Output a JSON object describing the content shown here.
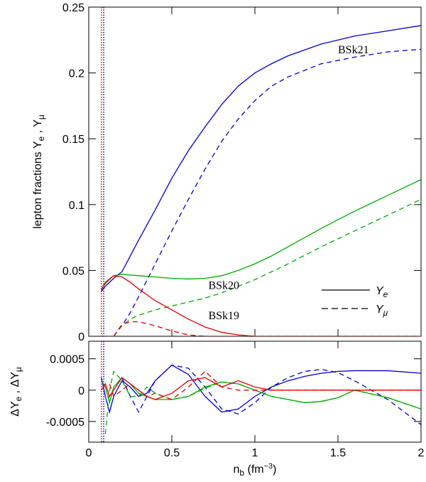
{
  "chart_data": [
    {
      "type": "line",
      "ylabel": [
        {
          "t": "lepton fractions Y"
        },
        {
          "t": "e",
          "sub": true
        },
        {
          "t": " , Y"
        },
        {
          "t": "μ",
          "sub": true
        }
      ],
      "x": [
        0.076,
        0.1,
        0.15,
        0.2,
        0.25,
        0.3,
        0.4,
        0.5,
        0.6,
        0.7,
        0.8,
        0.9,
        1.0,
        1.1,
        1.2,
        1.4,
        1.6,
        1.8,
        2.0
      ],
      "xlim": [
        0,
        2
      ],
      "xticks": [
        0,
        0.5,
        1,
        1.5,
        2
      ],
      "ylim": [
        0,
        0.25
      ],
      "yticks": [
        0,
        0.05,
        0.1,
        0.15,
        0.2,
        0.25
      ],
      "vlines": [
        {
          "x": 0.076,
          "color": "#cc0000"
        },
        {
          "x": 0.09,
          "color": "#0000cc"
        }
      ],
      "series": [
        {
          "name": "BSk21",
          "color": "#0000cc",
          "values": [
            0.034,
            0.038,
            0.044,
            0.049,
            0.061,
            0.073,
            0.096,
            0.12,
            0.141,
            0.159,
            0.176,
            0.19,
            0.2,
            0.207,
            0.213,
            0.222,
            0.228,
            0.232,
            0.236
          ],
          "values_mu": [
            null,
            null,
            0.0,
            0.008,
            0.018,
            0.03,
            0.055,
            0.08,
            0.104,
            0.127,
            0.148,
            0.165,
            0.179,
            0.19,
            0.197,
            0.207,
            0.212,
            0.216,
            0.218
          ]
        },
        {
          "name": "BSk20",
          "color": "#00aa00",
          "values": [
            0.036,
            0.04,
            0.046,
            0.047,
            0.0465,
            0.046,
            0.045,
            0.044,
            0.0435,
            0.044,
            0.046,
            0.05,
            0.055,
            0.061,
            0.068,
            0.082,
            0.095,
            0.107,
            0.119
          ],
          "values_mu": [
            null,
            null,
            0.0,
            0.008,
            0.013,
            0.016,
            0.02,
            0.023,
            0.026,
            0.029,
            0.033,
            0.038,
            0.043,
            0.049,
            0.055,
            0.068,
            0.08,
            0.092,
            0.104
          ]
        },
        {
          "name": "BSk19",
          "color": "#dd0000",
          "values": [
            0.035,
            0.041,
            0.046,
            0.045,
            0.041,
            0.036,
            0.027,
            0.02,
            0.013,
            0.007,
            0.003,
            0.001,
            0,
            0,
            0,
            0,
            0,
            0,
            0
          ],
          "values_mu": [
            null,
            null,
            0.0,
            0.009,
            0.011,
            0.011,
            0.008,
            0.004,
            0.001,
            0,
            0,
            0,
            0,
            0,
            0,
            0,
            0,
            0,
            0
          ]
        }
      ],
      "legend": [
        {
          "parts": [
            {
              "t": "Y"
            },
            {
              "t": "e",
              "sub": true
            }
          ],
          "dashed": false
        },
        {
          "parts": [
            {
              "t": "Y"
            },
            {
              "t": "μ",
              "sub": true
            }
          ],
          "dashed": true
        }
      ],
      "legend_position": "lower right"
    },
    {
      "type": "line",
      "ylabel": [
        {
          "t": "ΔY"
        },
        {
          "t": "e",
          "sub": true
        },
        {
          "t": " , ΔY"
        },
        {
          "t": "μ",
          "sub": true
        }
      ],
      "xlabel": [
        {
          "t": "n"
        },
        {
          "t": "b",
          "sub": true
        },
        {
          "t": " (fm"
        },
        {
          "t": "−3",
          "sup": true
        },
        {
          "t": ")"
        }
      ],
      "x": [
        0.076,
        0.1,
        0.125,
        0.15,
        0.2,
        0.25,
        0.3,
        0.35,
        0.4,
        0.5,
        0.6,
        0.7,
        0.8,
        0.9,
        1.0,
        1.1,
        1.2,
        1.3,
        1.4,
        1.5,
        1.6,
        1.8,
        2.0
      ],
      "xlim": [
        0,
        2
      ],
      "xticks": [
        0,
        0.5,
        1,
        1.5,
        2
      ],
      "ylim": [
        -0.00083,
        0.00078
      ],
      "yticks": [
        -0.0005,
        0,
        0.0005
      ],
      "vlines": [
        {
          "x": 0.076,
          "color": "#cc0000"
        },
        {
          "x": 0.09,
          "color": "#0000cc"
        }
      ],
      "series": [
        {
          "color": "#0000cc",
          "values": [
            0.0002,
            -0.0001,
            -0.00035,
            -0.0001,
            0.00015,
            5e-05,
            -0.0001,
            -5e-05,
            0.00015,
            0.0004,
            0.00025,
            -0.0001,
            -0.00035,
            -0.0003,
            -0.0001,
            5e-05,
            0.00015,
            0.00022,
            0.00027,
            0.0003,
            0.00031,
            0.00031,
            0.00027
          ],
          "values_mu": [
            null,
            null,
            null,
            null,
            0.0002,
            -0.0001,
            -0.00035,
            -0.0001,
            0.00015,
            0.0004,
            0.00035,
            5e-05,
            -0.0003,
            -0.00038,
            -0.0002,
            5e-05,
            0.0002,
            0.0003,
            0.00033,
            0.00028,
            0.00015,
            -0.00015,
            -0.00055
          ]
        },
        {
          "color": "#00aa00",
          "values": [
            0.00015,
            5e-05,
            -0.0002,
            5e-05,
            0.0002,
            0.0001,
            -5e-05,
            -0.0001,
            -0.00015,
            -0.00015,
            -0.0001,
            5e-05,
            0.00013,
            0.0001,
            0,
            -0.0001,
            -0.00015,
            -0.0002,
            -0.00018,
            -0.00012,
            0,
            -0.00012,
            -0.0003
          ],
          "values_mu": [
            null,
            -0.0007,
            0,
            0.0003,
            0.00015,
            -0.0001,
            -0.0001,
            5e-05,
            -5e-05,
            -0.00015,
            -0.0001,
            3e-05,
            0.00013,
            0.0001,
            0,
            -0.0001,
            -0.00015,
            -0.0002,
            -0.00018,
            -0.00012,
            0,
            -0.00012,
            -0.0003
          ]
        },
        {
          "color": "#dd0000",
          "values": [
            0,
            0.0001,
            -0.0001,
            0,
            0.0002,
            0.0001,
            0,
            -0.0001,
            -0.00015,
            -5e-05,
            0.00015,
            0.0002,
            5e-05,
            0.00015,
            5e-05,
            0,
            0,
            0,
            0,
            0,
            0,
            0,
            0
          ],
          "values_mu": [
            null,
            null,
            0.0001,
            -0.0001,
            0,
            0.0001,
            0,
            -0.0001,
            -5e-05,
            -0.00015,
            5e-05,
            0.0003,
            5e-05,
            0,
            0,
            0,
            0,
            0,
            0,
            0,
            0,
            0,
            0
          ]
        }
      ]
    }
  ]
}
